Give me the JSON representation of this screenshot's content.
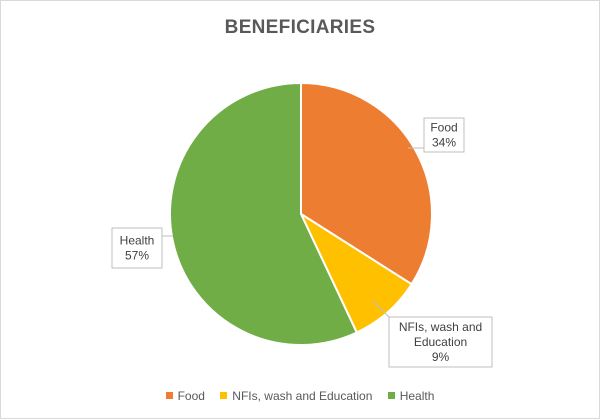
{
  "chart_data": {
    "type": "pie",
    "title": "BENEFICIARIES",
    "slices": [
      {
        "label": "Food",
        "value": 34,
        "value_label": "34%",
        "callout_lines": [
          "Food",
          "34%"
        ],
        "color": "#ED7D31"
      },
      {
        "label": "NFIs, wash and Education",
        "value": 9,
        "value_label": "9%",
        "callout_lines": [
          "NFIs, wash and",
          "Education",
          "9%"
        ],
        "color": "#FFC000"
      },
      {
        "label": "Health",
        "value": 57,
        "value_label": "57%",
        "callout_lines": [
          "Health",
          "57%"
        ],
        "color": "#70AD47"
      }
    ],
    "legend_position": "bottom"
  }
}
